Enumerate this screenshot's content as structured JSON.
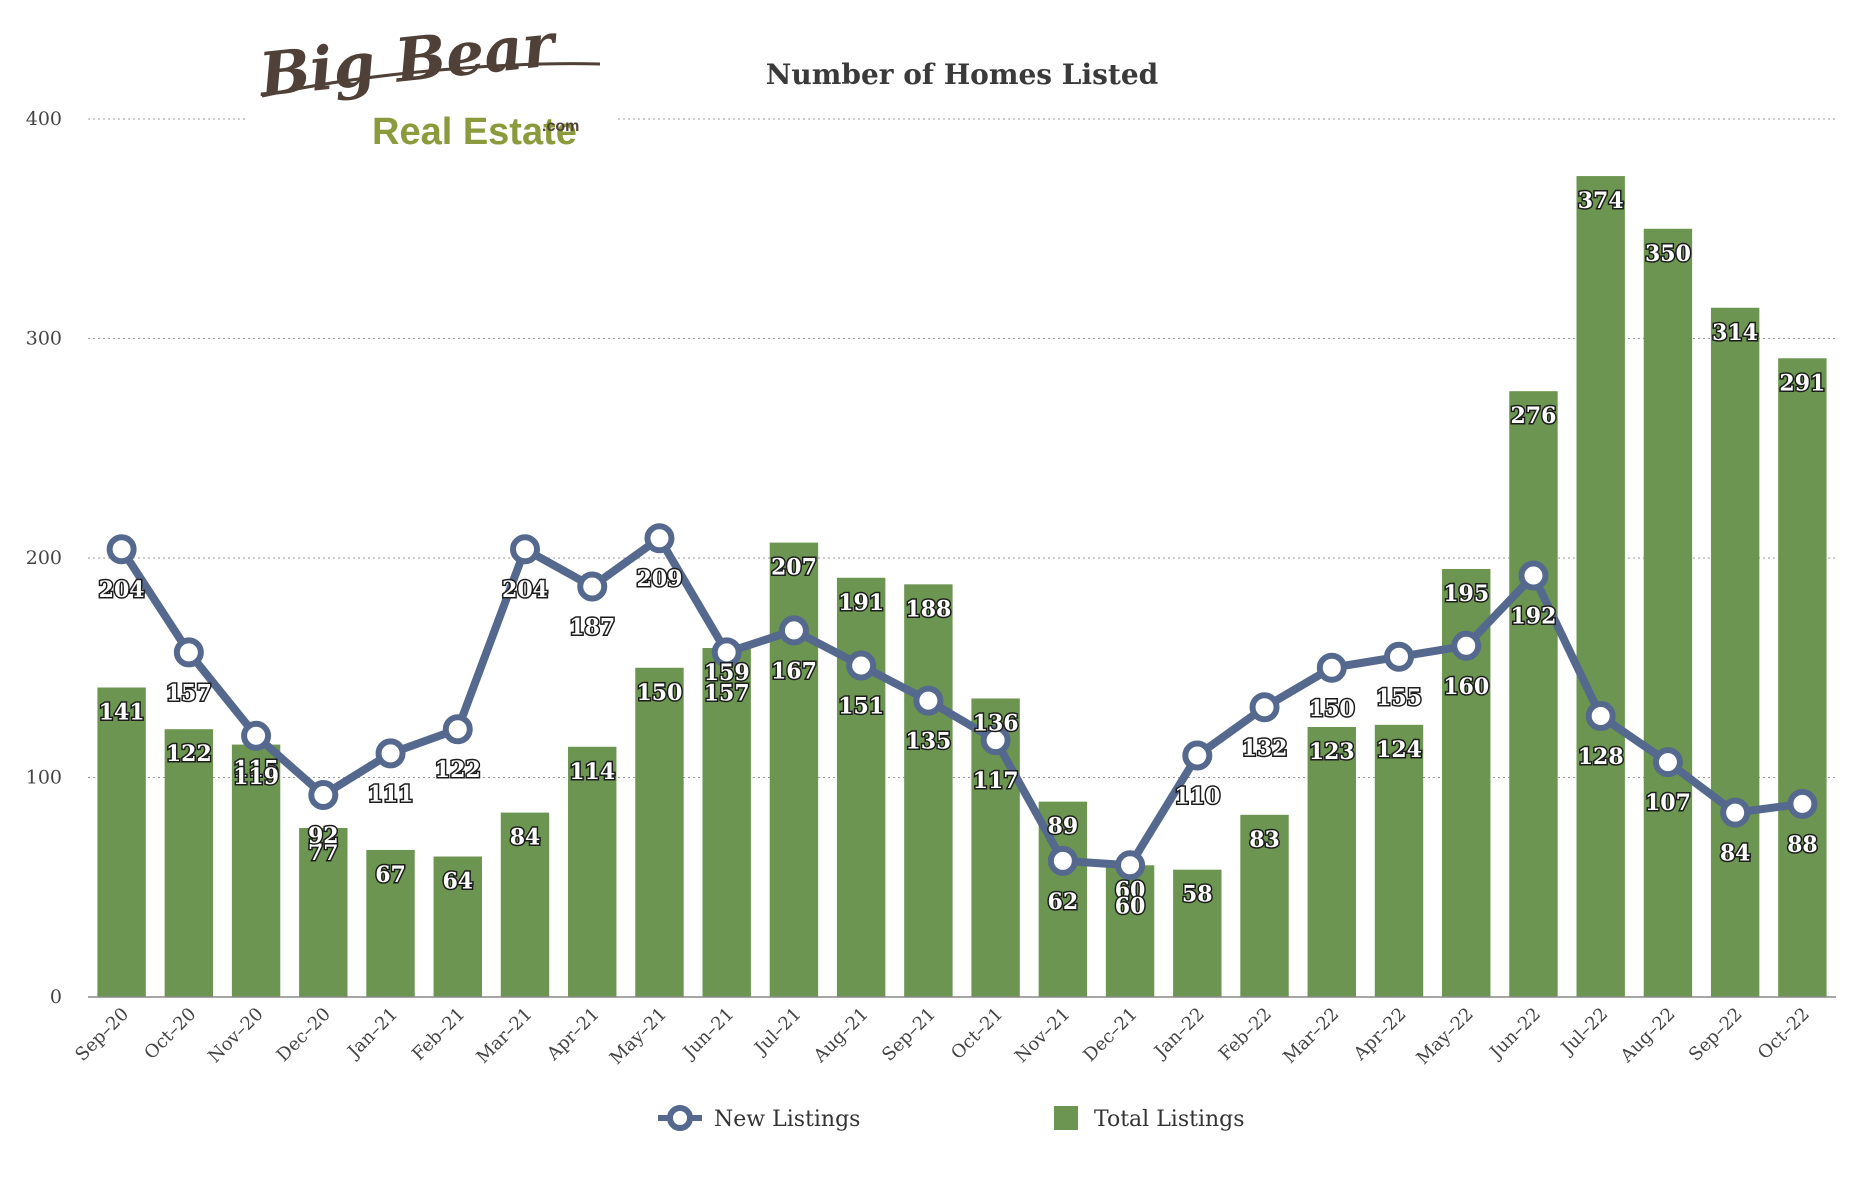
{
  "logo": {
    "line1": "Big Bear",
    "line2": "Real Estate",
    "suffix": ".com"
  },
  "colors": {
    "bar": "#6b9550",
    "line": "#55698e",
    "grid": "#999999",
    "axis": "#888888"
  },
  "chart_data": {
    "type": "bar",
    "title": "Number of Homes Listed",
    "xlabel": "",
    "ylabel": "",
    "ylim": [
      0,
      400
    ],
    "yticks": [
      0,
      100,
      200,
      300,
      400
    ],
    "grid": true,
    "legend_position": "bottom",
    "categories": [
      "Sep-20",
      "Oct-20",
      "Nov-20",
      "Dec-20",
      "Jan-21",
      "Feb-21",
      "Mar-21",
      "Apr-21",
      "May-21",
      "Jun-21",
      "Jul-21",
      "Aug-21",
      "Sep-21",
      "Oct-21",
      "Nov-21",
      "Dec-21",
      "Jan-22",
      "Feb-22",
      "Mar-22",
      "Apr-22",
      "May-22",
      "Jun-22",
      "Jul-22",
      "Aug-22",
      "Sep-22",
      "Oct-22"
    ],
    "series": [
      {
        "name": "New Listings",
        "type": "line",
        "values": [
          204,
          157,
          119,
          92,
          111,
          122,
          204,
          187,
          209,
          157,
          167,
          151,
          135,
          117,
          62,
          60,
          110,
          132,
          150,
          155,
          160,
          192,
          128,
          107,
          84,
          88
        ]
      },
      {
        "name": "Total Listings",
        "type": "bar",
        "values": [
          141,
          122,
          115,
          77,
          67,
          64,
          84,
          114,
          150,
          159,
          207,
          191,
          188,
          136,
          89,
          60,
          58,
          83,
          123,
          124,
          195,
          276,
          374,
          350,
          314,
          291
        ]
      }
    ]
  }
}
